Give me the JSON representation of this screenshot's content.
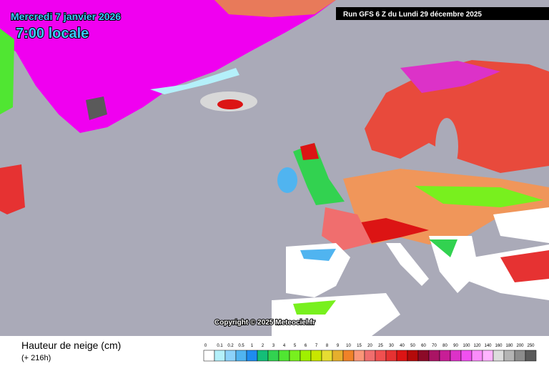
{
  "header": {
    "date": "Mercredi 7 janvier 2026",
    "time": "7:00 locale",
    "run": "Run GFS 6 Z du Lundi 29 décembre 2025"
  },
  "copyright": "Copyright © 2025 Meteociel.fr",
  "legend": {
    "title": "Hauteur de neige (cm)",
    "subtitle": "(+ 216h)",
    "items": [
      {
        "label": "0",
        "color": "#ffffff"
      },
      {
        "label": "0.1",
        "color": "#b4f0fa"
      },
      {
        "label": "0.2",
        "color": "#8cd2fa"
      },
      {
        "label": "0.5",
        "color": "#50b4f0"
      },
      {
        "label": "1",
        "color": "#1e8cf0"
      },
      {
        "label": "2",
        "color": "#14be78"
      },
      {
        "label": "3",
        "color": "#32d250"
      },
      {
        "label": "4",
        "color": "#50e632"
      },
      {
        "label": "5",
        "color": "#78f01e"
      },
      {
        "label": "6",
        "color": "#a0f000"
      },
      {
        "label": "7",
        "color": "#c8e600"
      },
      {
        "label": "8",
        "color": "#e6dc32"
      },
      {
        "label": "9",
        "color": "#e6af2d"
      },
      {
        "label": "10",
        "color": "#f08228"
      },
      {
        "label": "15",
        "color": "#fa9678"
      },
      {
        "label": "20",
        "color": "#f06e6e"
      },
      {
        "label": "25",
        "color": "#f05050"
      },
      {
        "label": "30",
        "color": "#e63232"
      },
      {
        "label": "40",
        "color": "#dc1414"
      },
      {
        "label": "50",
        "color": "#b40a0a"
      },
      {
        "label": "60",
        "color": "#8c0a28"
      },
      {
        "label": "70",
        "color": "#aa1464"
      },
      {
        "label": "80",
        "color": "#c81e96"
      },
      {
        "label": "90",
        "color": "#dc32c8"
      },
      {
        "label": "100",
        "color": "#f050f0"
      },
      {
        "label": "120",
        "color": "#fa8cfa"
      },
      {
        "label": "140",
        "color": "#ffb4ff"
      },
      {
        "label": "160",
        "color": "#dcdcdc"
      },
      {
        "label": "180",
        "color": "#b4b4b4"
      },
      {
        "label": "200",
        "color": "#8c8c8c"
      },
      {
        "label": "250",
        "color": "#5a5a5a"
      }
    ]
  }
}
